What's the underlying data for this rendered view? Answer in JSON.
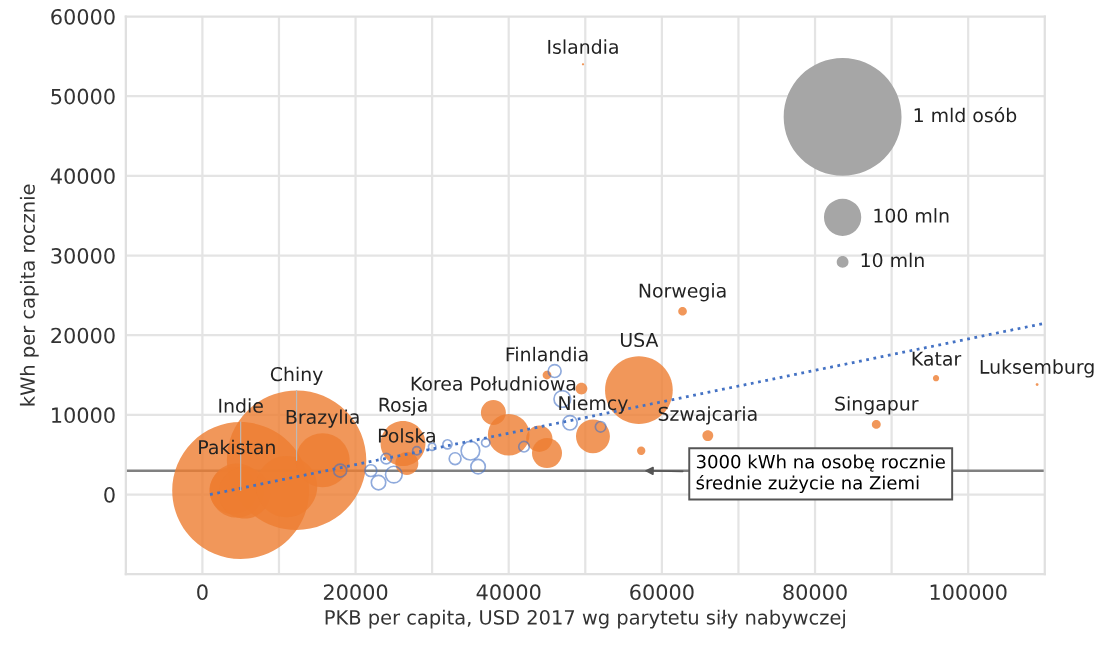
{
  "chart_data": {
    "type": "bubble",
    "xlabel": "PKB per capita, USD 2017 wg parytetu siły nabywczej",
    "ylabel": "kWh per capita rocznie",
    "xlim": [
      -10000,
      110000
    ],
    "ylim": [
      -10000,
      60000
    ],
    "xticks": [
      {
        "value": -10000,
        "label": null
      },
      0,
      {
        "value": 10000,
        "label": null
      },
      20000,
      {
        "value": 30000,
        "label": null
      },
      40000,
      {
        "value": 50000,
        "label": null
      },
      60000,
      {
        "value": 70000,
        "label": null
      },
      80000,
      {
        "value": 90000,
        "label": null
      },
      100000
    ],
    "yticks": [
      {
        "value": -10000,
        "label": null
      },
      0,
      10000,
      20000,
      30000,
      40000,
      50000,
      60000
    ],
    "grid": true,
    "size_legend": [
      {
        "value": 1000,
        "label": "1 mld osób"
      },
      {
        "value": 100,
        "label": "100 mln"
      },
      {
        "value": 10,
        "label": "10 mln"
      }
    ],
    "series": [
      {
        "color": "#ed7d31",
        "marker": "circle",
        "x": [
          5000,
          12300,
          4500,
          4000,
          5500,
          11000,
          15700,
          26200,
          26700,
          38000,
          40000,
          44000,
          45000,
          45000,
          49500,
          51000,
          57000,
          57300,
          62700,
          66000,
          88000,
          95800,
          109000,
          49700
        ],
        "values": [
          500,
          4300,
          500,
          500,
          200,
          1000,
          4300,
          6400,
          3900,
          10300,
          7500,
          7000,
          5200,
          15000,
          13300,
          7300,
          13100,
          5500,
          23000,
          7400,
          8800,
          14600,
          13800,
          54000
        ],
        "sizes": [
          1350,
          1400,
          210,
          160,
          190,
          270,
          210,
          145,
          38,
          45,
          125,
          50,
          65,
          5.5,
          10,
          83,
          330,
          5,
          5.4,
          8.5,
          5.7,
          2.8,
          0.6,
          0.35
        ]
      },
      {
        "color": "#4472c4",
        "marker": "circle",
        "x": [
          18000,
          20000,
          22000,
          23000,
          24000,
          25000,
          28000,
          30000,
          32000,
          33000,
          35000,
          36000,
          37000,
          42000,
          46000,
          47000,
          48000,
          52000
        ],
        "values": [
          3000,
          null,
          3000,
          1500,
          4500,
          2500,
          5500,
          6000,
          6300,
          4500,
          5500,
          3500,
          6500,
          6000,
          15500,
          12000,
          9000,
          8500
        ],
        "sizes": [
          12,
          null,
          10,
          15,
          8,
          20,
          5,
          4,
          6,
          10,
          25,
          15,
          5,
          8,
          12,
          20,
          15,
          8
        ]
      },
      {
        "type": "line",
        "color": "#4472c4",
        "line_style": "dotted",
        "marker": "none",
        "x": [
          1000,
          110000
        ],
        "values": [
          0,
          21500
        ]
      }
    ],
    "ref_lines": [
      {
        "axis": "y",
        "value": 3000,
        "color": "#808080",
        "label": "3000 kWh na osobę rocznie\nśrednie zużycie na Ziemi"
      }
    ],
    "annotations": [
      {
        "text": "Islandia",
        "x": 49700,
        "y": 54000
      },
      {
        "text": "Chiny",
        "x": 12300,
        "y": 4300
      },
      {
        "text": "Indie",
        "x": 5000,
        "y": 500
      },
      {
        "text": "Pakistan",
        "x": 4500,
        "y": 500
      },
      {
        "text": "Brazylia",
        "x": 15700,
        "y": 4300
      },
      {
        "text": "Rosja",
        "x": 26200,
        "y": 6400
      },
      {
        "text": "Polska",
        "x": 26700,
        "y": 3900
      },
      {
        "text": "Korea Południowa",
        "x": 38000,
        "y": 10300
      },
      {
        "text": "Finlandia",
        "x": 45000,
        "y": 15000
      },
      {
        "text": "Niemcy",
        "x": 51000,
        "y": 7300
      },
      {
        "text": "USA",
        "x": 57000,
        "y": 13100
      },
      {
        "text": "Norwegia",
        "x": 62700,
        "y": 23000
      },
      {
        "text": "Szwajcaria",
        "x": 66000,
        "y": 7400
      },
      {
        "text": "Singapur",
        "x": 88000,
        "y": 8800
      },
      {
        "text": "Katar",
        "x": 95800,
        "y": 14600
      },
      {
        "text": "Luksemburg",
        "x": 109000,
        "y": 13800
      }
    ]
  }
}
